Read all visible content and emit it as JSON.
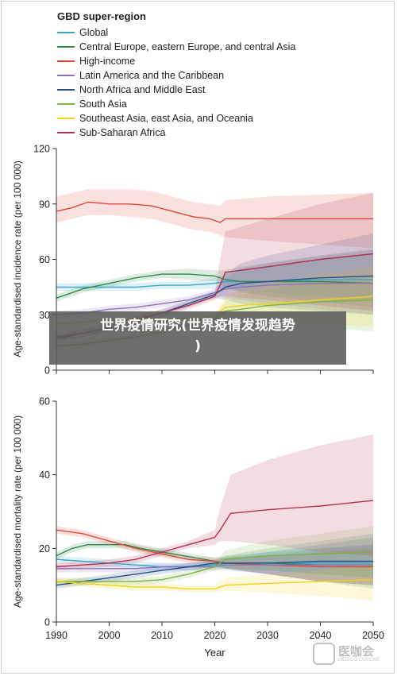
{
  "legend": {
    "title": "GBD super-region",
    "items": [
      {
        "label": "Global",
        "color": "#3ba5c9"
      },
      {
        "label": "Central Europe, eastern Europe, and central Asia",
        "color": "#2e8a4a"
      },
      {
        "label": "High-income",
        "color": "#e0473a"
      },
      {
        "label": "Latin America and the Caribbean",
        "color": "#8b73b8"
      },
      {
        "label": "North Africa and Middle East",
        "color": "#23508c"
      },
      {
        "label": "South Asia",
        "color": "#7cb342"
      },
      {
        "label": "Southeast Asia, east Asia, and Oceania",
        "color": "#f2d11b"
      },
      {
        "label": "Sub-Saharan Africa",
        "color": "#b42e52"
      }
    ]
  },
  "banner": {
    "line1": "世界疫情研究(世界疫情发现趋势",
    "line2": ")"
  },
  "watermark": {
    "text": "医咖会",
    "sub": "MEDICO COCOME"
  },
  "chart_data": [
    {
      "type": "line",
      "ylabel": "Age-standardised incidence rate (per 100 000)",
      "xlabel": "",
      "ylim": [
        0,
        120
      ],
      "yticks": [
        "0",
        "30",
        "60",
        "90",
        "120"
      ],
      "xlim": [
        1990,
        2050
      ],
      "xticks": [],
      "series": [
        {
          "name": "Global",
          "color": "#3ba5c9",
          "x": [
            1990,
            1995,
            2000,
            2005,
            2010,
            2015,
            2020,
            2022,
            2025,
            2030,
            2040,
            2050
          ],
          "y": [
            45,
            45,
            45,
            45,
            46,
            46,
            47,
            48,
            48,
            48,
            49,
            49
          ],
          "lo": [
            43,
            43,
            43,
            43,
            44,
            44,
            44,
            44,
            43,
            42,
            40,
            39
          ],
          "hi": [
            47,
            47,
            47,
            47,
            48,
            48,
            50,
            52,
            54,
            56,
            60,
            63
          ]
        },
        {
          "name": "Central Europe, eastern Europe, and central Asia",
          "color": "#2e8a4a",
          "x": [
            1990,
            1995,
            2000,
            2005,
            2010,
            2015,
            2020,
            2022,
            2025,
            2030,
            2040,
            2050
          ],
          "y": [
            39,
            44,
            47,
            50,
            52,
            52,
            51,
            49,
            48,
            48,
            48,
            47
          ],
          "lo": [
            37,
            42,
            45,
            48,
            50,
            49,
            48,
            45,
            42,
            40,
            37,
            34
          ],
          "hi": [
            41,
            46,
            49,
            52,
            54,
            55,
            54,
            54,
            56,
            58,
            62,
            65
          ]
        },
        {
          "name": "High-income",
          "color": "#e0473a",
          "x": [
            1990,
            1993,
            1996,
            2000,
            2004,
            2008,
            2012,
            2016,
            2019,
            2021,
            2022,
            2030,
            2040,
            2050
          ],
          "y": [
            86,
            88,
            91,
            90,
            90,
            89,
            86,
            83,
            82,
            80,
            82,
            82,
            82,
            82
          ],
          "lo": [
            80,
            82,
            84,
            84,
            83,
            82,
            79,
            76,
            75,
            73,
            72,
            70,
            68,
            66
          ],
          "hi": [
            94,
            96,
            98,
            98,
            98,
            97,
            94,
            91,
            90,
            89,
            92,
            94,
            95,
            96
          ]
        },
        {
          "name": "Latin America and the Caribbean",
          "color": "#8b73b8",
          "x": [
            1990,
            1995,
            2000,
            2005,
            2010,
            2015,
            2020,
            2022,
            2025,
            2030,
            2040,
            2050
          ],
          "y": [
            30,
            31,
            33,
            34,
            36,
            38,
            42,
            44,
            45,
            46,
            47,
            47
          ],
          "lo": [
            28,
            29,
            31,
            32,
            34,
            36,
            40,
            39,
            38,
            36,
            33,
            30
          ],
          "hi": [
            32,
            33,
            35,
            36,
            38,
            40,
            44,
            50,
            55,
            58,
            62,
            66
          ]
        },
        {
          "name": "North Africa and Middle East",
          "color": "#23508c",
          "x": [
            1990,
            1995,
            2000,
            2005,
            2010,
            2015,
            2020,
            2022,
            2025,
            2030,
            2040,
            2050
          ],
          "y": [
            17,
            20,
            23,
            27,
            31,
            36,
            41,
            45,
            47,
            48,
            50,
            51
          ],
          "lo": [
            15,
            18,
            21,
            25,
            29,
            34,
            39,
            38,
            36,
            34,
            32,
            30
          ],
          "hi": [
            19,
            22,
            25,
            29,
            33,
            38,
            43,
            52,
            58,
            62,
            68,
            74
          ]
        },
        {
          "name": "South Asia",
          "color": "#7cb342",
          "x": [
            1990,
            1995,
            2000,
            2005,
            2010,
            2015,
            2020,
            2022,
            2025,
            2030,
            2040,
            2050
          ],
          "y": [
            13,
            14,
            16,
            18,
            21,
            24,
            28,
            32,
            33,
            35,
            37,
            38
          ],
          "lo": [
            11,
            12,
            14,
            16,
            19,
            22,
            26,
            27,
            26,
            25,
            23,
            21
          ],
          "hi": [
            15,
            16,
            18,
            20,
            23,
            26,
            30,
            37,
            41,
            44,
            48,
            52
          ]
        },
        {
          "name": "Southeast Asia, east Asia, and Oceania",
          "color": "#f2d11b",
          "x": [
            1990,
            1995,
            2000,
            2005,
            2010,
            2015,
            2020,
            2022,
            2025,
            2030,
            2040,
            2050
          ],
          "y": [
            25,
            26,
            27,
            28,
            28,
            28,
            29,
            34,
            35,
            36,
            38,
            40
          ],
          "lo": [
            23,
            24,
            25,
            26,
            26,
            26,
            27,
            29,
            28,
            27,
            25,
            24
          ],
          "hi": [
            27,
            28,
            29,
            30,
            30,
            30,
            31,
            40,
            44,
            47,
            52,
            56
          ]
        },
        {
          "name": "Sub-Saharan Africa",
          "color": "#b42e52",
          "x": [
            1990,
            1995,
            2000,
            2005,
            2010,
            2015,
            2020,
            2021,
            2022,
            2030,
            2040,
            2050
          ],
          "y": [
            18,
            20,
            23,
            27,
            31,
            35,
            40,
            46,
            53,
            56,
            60,
            63
          ],
          "lo": [
            16,
            18,
            21,
            25,
            29,
            33,
            38,
            40,
            40,
            38,
            35,
            32
          ],
          "hi": [
            20,
            22,
            25,
            29,
            33,
            37,
            42,
            60,
            75,
            82,
            90,
            96
          ]
        }
      ]
    },
    {
      "type": "line",
      "ylabel": "Age-standardised mortality rate (per 100 000)",
      "xlabel": "Year",
      "ylim": [
        0,
        60
      ],
      "yticks": [
        "0",
        "20",
        "40",
        "60"
      ],
      "xlim": [
        1990,
        2050
      ],
      "xticks": [
        "1990",
        "2000",
        "2010",
        "2020",
        "2030",
        "2040",
        "2050"
      ],
      "series": [
        {
          "name": "Global",
          "color": "#3ba5c9",
          "x": [
            1990,
            1995,
            2000,
            2005,
            2010,
            2015,
            2020,
            2022,
            2030,
            2040,
            2050
          ],
          "y": [
            17,
            16.5,
            16,
            15.5,
            15,
            15,
            15.5,
            16,
            16,
            16,
            16
          ],
          "lo": [
            16,
            15.5,
            15,
            14.5,
            14,
            14,
            14.5,
            14.5,
            14,
            13,
            12
          ],
          "hi": [
            18,
            17.5,
            17,
            16.5,
            16,
            16,
            16.5,
            18,
            19,
            20,
            21
          ]
        },
        {
          "name": "Central Europe, eastern Europe, and central Asia",
          "color": "#2e8a4a",
          "x": [
            1990,
            1993,
            1996,
            2000,
            2003,
            2006,
            2010,
            2014,
            2018,
            2020,
            2022,
            2030,
            2040,
            2050
          ],
          "y": [
            18,
            20,
            21,
            21,
            21,
            20,
            19,
            18,
            17,
            16.5,
            16,
            16,
            15.5,
            15.5
          ],
          "lo": [
            17,
            19,
            20,
            20,
            20,
            19,
            18,
            17,
            16,
            15.5,
            14.5,
            13,
            11,
            9
          ],
          "hi": [
            19,
            21,
            22,
            22,
            22,
            21,
            20,
            19,
            18,
            17.5,
            18,
            20,
            22,
            24
          ]
        },
        {
          "name": "High-income",
          "color": "#e0473a",
          "x": [
            1990,
            1995,
            2000,
            2005,
            2010,
            2015,
            2020,
            2022,
            2030,
            2040,
            2050
          ],
          "y": [
            25,
            24,
            22,
            20,
            18.5,
            17,
            16.5,
            16,
            15.5,
            15,
            15
          ],
          "lo": [
            24,
            23,
            21,
            19,
            17.5,
            16,
            15.5,
            14.5,
            13,
            11,
            10
          ],
          "hi": [
            26,
            25,
            23,
            21,
            19.5,
            18,
            17.5,
            17.5,
            18,
            19,
            20
          ]
        },
        {
          "name": "Latin America and the Caribbean",
          "color": "#8b73b8",
          "x": [
            1990,
            1995,
            2000,
            2005,
            2010,
            2015,
            2020,
            2022,
            2030,
            2040,
            2050
          ],
          "y": [
            14.5,
            14.5,
            14.5,
            14.5,
            15,
            15,
            15,
            15.5,
            15.5,
            15.5,
            15.5
          ],
          "lo": [
            13.5,
            13.5,
            13.5,
            13.5,
            14,
            14,
            14,
            14,
            13,
            11,
            10
          ],
          "hi": [
            15.5,
            15.5,
            15.5,
            15.5,
            16,
            16,
            16,
            17,
            18,
            20,
            21
          ]
        },
        {
          "name": "North Africa and Middle East",
          "color": "#23508c",
          "x": [
            1990,
            1995,
            2000,
            2005,
            2010,
            2015,
            2020,
            2022,
            2030,
            2040,
            2050
          ],
          "y": [
            10,
            11,
            12,
            13,
            14,
            15,
            16,
            16,
            16,
            16.5,
            16.5
          ],
          "lo": [
            9,
            10,
            11,
            12,
            13,
            14,
            15,
            14.5,
            13,
            11,
            10
          ],
          "hi": [
            11,
            12,
            13,
            14,
            15,
            16,
            17,
            17.5,
            19,
            21,
            23
          ]
        },
        {
          "name": "South Asia",
          "color": "#7cb342",
          "x": [
            1990,
            1995,
            2000,
            2005,
            2010,
            2015,
            2020,
            2022,
            2030,
            2040,
            2050
          ],
          "y": [
            11,
            11,
            11,
            11,
            11.5,
            13,
            15,
            17,
            18,
            18.5,
            19
          ],
          "lo": [
            10,
            10,
            10,
            10,
            10.5,
            12,
            14,
            14.5,
            14,
            13,
            12
          ],
          "hi": [
            12,
            12,
            12,
            12,
            12.5,
            14,
            16,
            19.5,
            22,
            24,
            26
          ]
        },
        {
          "name": "Southeast Asia, east Asia, and Oceania",
          "color": "#f2d11b",
          "x": [
            1990,
            1995,
            2000,
            2005,
            2010,
            2015,
            2020,
            2022,
            2030,
            2040,
            2050
          ],
          "y": [
            11,
            10.5,
            10,
            9.5,
            9.5,
            9,
            9,
            10,
            10.5,
            11,
            11.5
          ],
          "lo": [
            10,
            9.5,
            9,
            8.5,
            8.5,
            8,
            8,
            8.5,
            8,
            7,
            6
          ],
          "hi": [
            12,
            11.5,
            11,
            10.5,
            10.5,
            10,
            10,
            12,
            13,
            14,
            16
          ]
        },
        {
          "name": "Sub-Saharan Africa",
          "color": "#b42e52",
          "x": [
            1990,
            1995,
            2000,
            2005,
            2010,
            2015,
            2020,
            2021,
            2023,
            2030,
            2040,
            2050
          ],
          "y": [
            15,
            15.5,
            16,
            17,
            19,
            21,
            23,
            25,
            29.5,
            30.5,
            31.5,
            33
          ],
          "lo": [
            14,
            14.5,
            15,
            16,
            18,
            20,
            21,
            22,
            22,
            21,
            19,
            18
          ],
          "hi": [
            16,
            16.5,
            17,
            18,
            20,
            22,
            25,
            31,
            40,
            44,
            48,
            51
          ]
        }
      ]
    }
  ]
}
